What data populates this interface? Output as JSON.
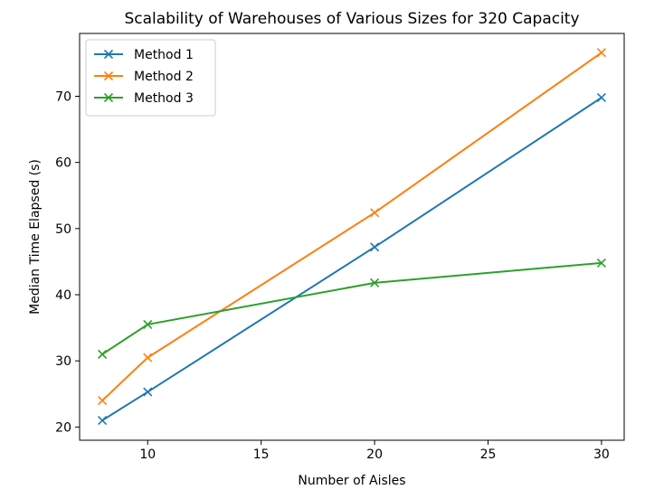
{
  "chart_data": {
    "type": "line",
    "title": "Scalability of Warehouses of Various Sizes for 320 Capacity",
    "xlabel": "Number of Aisles",
    "ylabel": "Median Time Elapsed (s)",
    "x": [
      8,
      10,
      20,
      30
    ],
    "xlim": [
      7.0,
      31.0
    ],
    "ylim": [
      18.0,
      79.5
    ],
    "xticks": [
      10,
      15,
      20,
      25,
      30
    ],
    "yticks": [
      20,
      30,
      40,
      50,
      60,
      70
    ],
    "grid": false,
    "legend_position": "upper left",
    "marker": "x",
    "series": [
      {
        "name": "Method 1",
        "color": "#1f77b4",
        "values": [
          21.0,
          25.3,
          47.2,
          69.8
        ]
      },
      {
        "name": "Method 2",
        "color": "#ff7f0e",
        "values": [
          24.0,
          30.5,
          52.4,
          76.6
        ]
      },
      {
        "name": "Method 3",
        "color": "#2ca02c",
        "values": [
          31.0,
          35.5,
          41.8,
          44.8
        ]
      }
    ]
  }
}
